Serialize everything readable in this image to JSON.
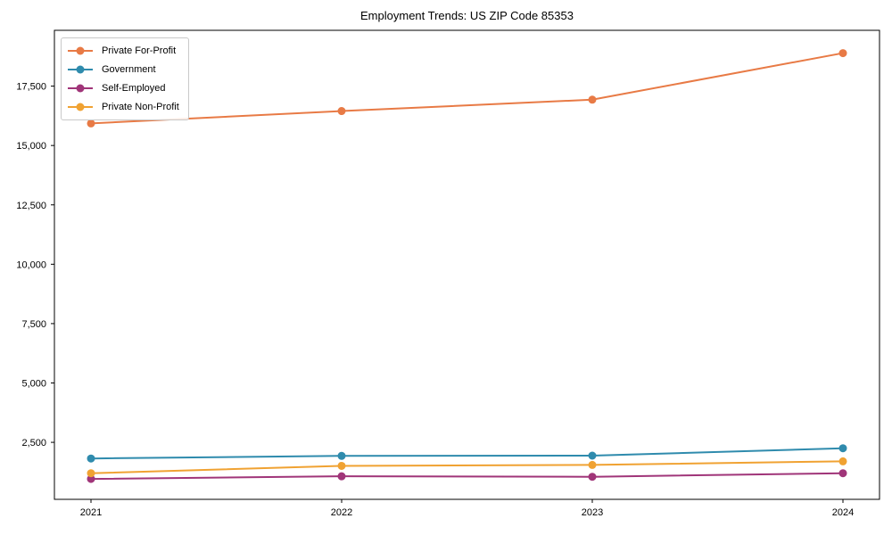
{
  "chart_data": {
    "type": "line",
    "title": "Employment Trends: US ZIP Code 85353",
    "xlabel": "",
    "ylabel": "",
    "categories": [
      "2021",
      "2022",
      "2023",
      "2024"
    ],
    "series": [
      {
        "name": "Private For-Profit",
        "color": "#e87a45",
        "values": [
          15930,
          16450,
          16930,
          18890
        ]
      },
      {
        "name": "Government",
        "color": "#2f8bad",
        "values": [
          1820,
          1930,
          1940,
          2250
        ]
      },
      {
        "name": "Self-Employed",
        "color": "#a03579",
        "values": [
          960,
          1070,
          1050,
          1200
        ]
      },
      {
        "name": "Private Non-Profit",
        "color": "#f0a232",
        "values": [
          1200,
          1510,
          1550,
          1700
        ]
      }
    ],
    "ytick_values": [
      2500,
      5000,
      7500,
      10000,
      12500,
      15000,
      17500
    ],
    "ytick_labels": [
      "2,500",
      "5,000",
      "7,500",
      "10,000",
      "12,500",
      "15,000",
      "17,500"
    ],
    "ylim": [
      100,
      19850
    ],
    "grid": false,
    "legend_position": "upper-left",
    "axis_color": "#000000",
    "background_color": "#ffffff"
  }
}
